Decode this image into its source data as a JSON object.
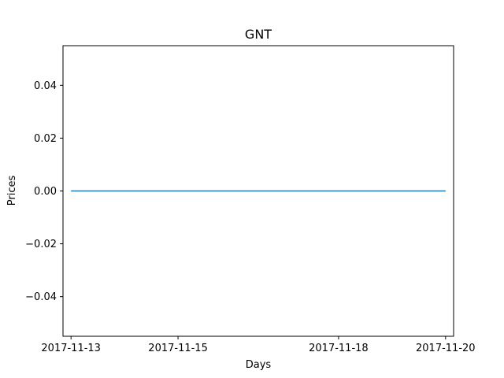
{
  "chart_data": {
    "type": "line",
    "title": "GNT",
    "xlabel": "Days",
    "ylabel": "Prices",
    "x": [
      "2017-11-13",
      "2017-11-14",
      "2017-11-15",
      "2017-11-16",
      "2017-11-17",
      "2017-11-18",
      "2017-11-19",
      "2017-11-20"
    ],
    "series": [
      {
        "values": [
          0,
          0,
          0,
          0,
          0,
          0,
          0,
          0
        ],
        "color": "#1f77b4"
      }
    ],
    "xticks": [
      "2017-11-13",
      "2017-11-15",
      "2017-11-18",
      "2017-11-20"
    ],
    "yticks": [
      {
        "value": 0.04,
        "label": "0.04"
      },
      {
        "value": 0.02,
        "label": "0.02"
      },
      {
        "value": 0.0,
        "label": "0.00"
      },
      {
        "value": -0.02,
        "label": "−0.02"
      },
      {
        "value": -0.04,
        "label": "−0.04"
      }
    ],
    "xlim": [
      "2017-11-12T20:24:00",
      "2017-11-20T03:36:00"
    ],
    "ylim": [
      -0.055,
      0.055
    ],
    "grid": false,
    "legend": "none"
  }
}
